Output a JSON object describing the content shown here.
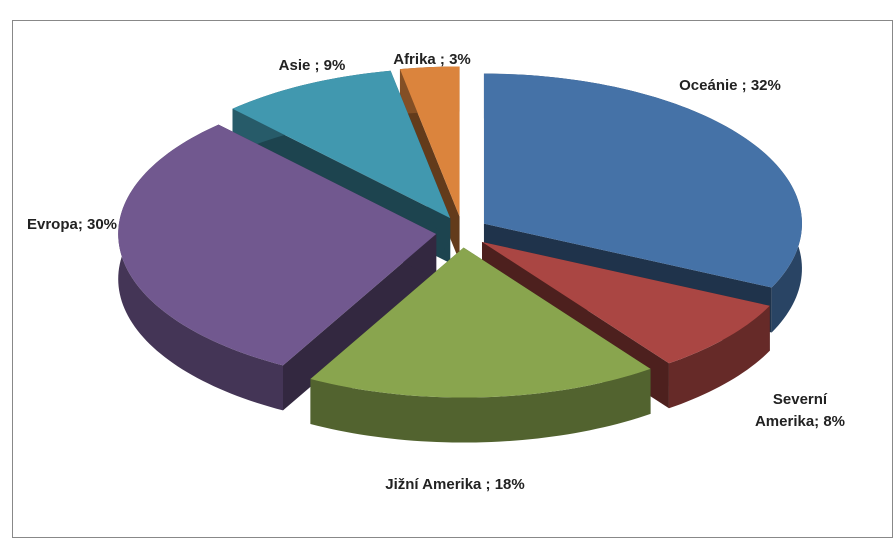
{
  "chart_data": {
    "type": "pie3d",
    "values": [
      32,
      8,
      18,
      30,
      9,
      3
    ],
    "value_labels": [
      "Oceánie ; 32%",
      "Severní Amerika; 8%",
      "Jižní Amerika ; 18%",
      "Evropa; 30%",
      "Asie ; 9%",
      "Afrika ; 3%"
    ],
    "colors": [
      "#4572a7",
      "#aa4643",
      "#89a54e",
      "#71588f",
      "#4198af",
      "#db843d"
    ]
  }
}
